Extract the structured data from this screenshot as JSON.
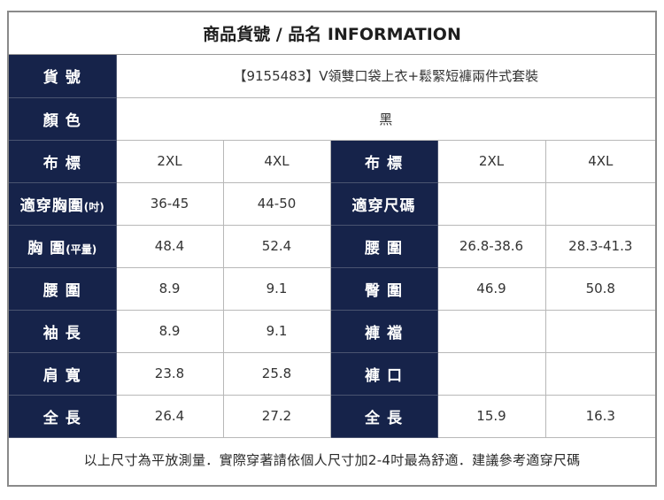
{
  "header": {
    "title": "商品貨號 / 品名 INFORMATION"
  },
  "item": {
    "label": "貨 號",
    "value": "【9155483】V領雙口袋上衣+鬆緊短褲兩件式套裝"
  },
  "color": {
    "label": "顏 色",
    "value": "黑"
  },
  "size_row": {
    "label_left": "布 標",
    "left": [
      "2XL",
      "4XL"
    ],
    "label_right": "布 標",
    "right": [
      "2XL",
      "4XL"
    ]
  },
  "rows": [
    {
      "label_left": "適穿胸圍",
      "label_left_sub": "(吋)",
      "left": [
        "36-45",
        "44-50"
      ],
      "label_right": "適穿尺碼",
      "right": [
        "",
        ""
      ]
    },
    {
      "label_left": "胸 圍",
      "label_left_sub": "(平量)",
      "left": [
        "48.4",
        "52.4"
      ],
      "label_right": "腰 圍",
      "right": [
        "26.8-38.6",
        "28.3-41.3"
      ]
    },
    {
      "label_left": "腰 圍",
      "label_left_sub": "",
      "left": [
        "8.9",
        "9.1"
      ],
      "label_right": "臀 圍",
      "right": [
        "46.9",
        "50.8"
      ]
    },
    {
      "label_left": "袖 長",
      "label_left_sub": "",
      "left": [
        "8.9",
        "9.1"
      ],
      "label_right": "褲 襠",
      "right": [
        "",
        ""
      ]
    },
    {
      "label_left": "肩 寬",
      "label_left_sub": "",
      "left": [
        "23.8",
        "25.8"
      ],
      "label_right": "褲 口",
      "right": [
        "",
        ""
      ]
    },
    {
      "label_left": "全 長",
      "label_left_sub": "",
      "left": [
        "26.4",
        "27.2"
      ],
      "label_right": "全 長",
      "right": [
        "15.9",
        "16.3"
      ]
    }
  ],
  "footer": {
    "note": "以上尺寸為平放測量．實際穿著請依個人尺寸加2-4吋最為舒適．建議參考適穿尺碼"
  },
  "colors": {
    "label_bg": "#16234a",
    "label_text": "#ffffff",
    "border": "#b8b8b8"
  }
}
